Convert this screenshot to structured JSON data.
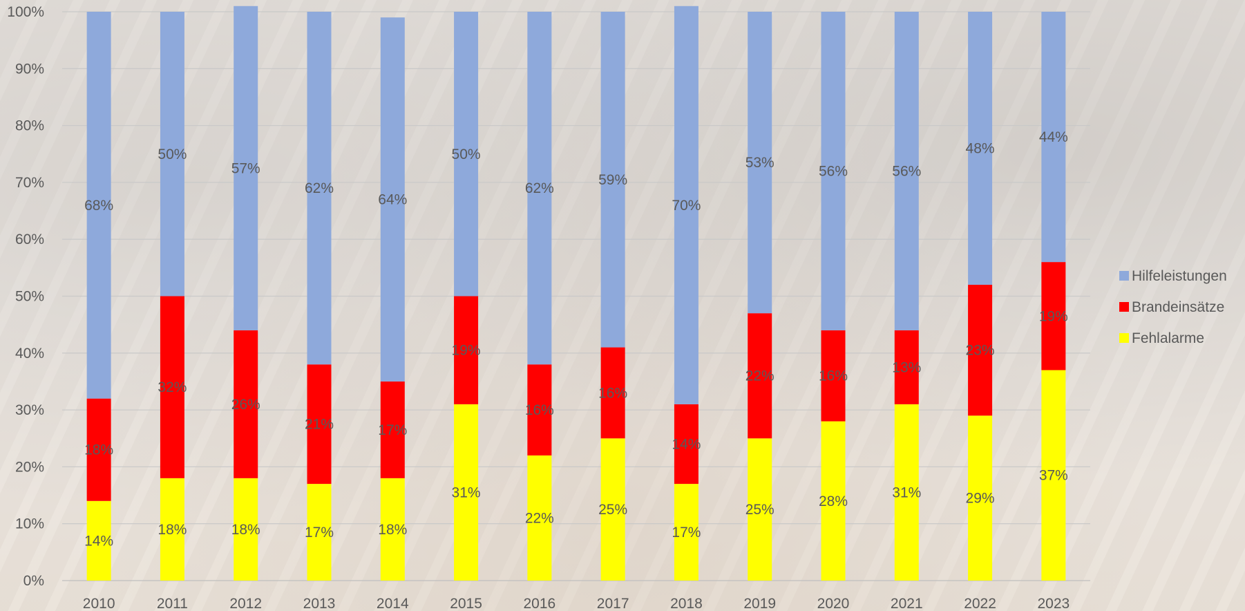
{
  "chart_data": {
    "type": "bar",
    "stacked": true,
    "percent_stacked": true,
    "title": "",
    "xlabel": "",
    "ylabel": "",
    "ylim": [
      0,
      100
    ],
    "yticks": [
      "0%",
      "10%",
      "20%",
      "30%",
      "40%",
      "50%",
      "60%",
      "70%",
      "80%",
      "90%",
      "100%"
    ],
    "grid": true,
    "legend_position": "right",
    "categories": [
      "2010",
      "2011",
      "2012",
      "2013",
      "2014",
      "2015",
      "2016",
      "2017",
      "2018",
      "2019",
      "2020",
      "2021",
      "2022",
      "2023"
    ],
    "series": [
      {
        "name": "Fehlalarme",
        "color": "#FFFF00",
        "values": [
          14,
          18,
          18,
          17,
          18,
          31,
          22,
          25,
          17,
          25,
          28,
          31,
          29,
          37
        ],
        "labels": [
          "14%",
          "18%",
          "18%",
          "17%",
          "18%",
          "31%",
          "22%",
          "25%",
          "17%",
          "25%",
          "28%",
          "31%",
          "29%",
          "37%"
        ]
      },
      {
        "name": "Brandeinsätze",
        "color": "#FF0000",
        "values": [
          18,
          32,
          26,
          21,
          17,
          19,
          16,
          16,
          14,
          22,
          16,
          13,
          23,
          19
        ],
        "labels": [
          "18%",
          "32%",
          "26%",
          "21%",
          "17%",
          "19%",
          "16%",
          "16%",
          "14%",
          "22%",
          "16%",
          "13%",
          "23%",
          "19%"
        ]
      },
      {
        "name": "Hilfeleistungen",
        "color": "#8EA9DB",
        "values": [
          68,
          50,
          57,
          62,
          64,
          50,
          62,
          59,
          70,
          53,
          56,
          56,
          48,
          44
        ],
        "labels": [
          "68%",
          "50%",
          "57%",
          "62%",
          "64%",
          "50%",
          "62%",
          "59%",
          "70%",
          "53%",
          "56%",
          "56%",
          "48%",
          "44%"
        ]
      }
    ],
    "legend_order": [
      "Hilfeleistungen",
      "Brandeinsätze",
      "Fehlalarme"
    ]
  }
}
